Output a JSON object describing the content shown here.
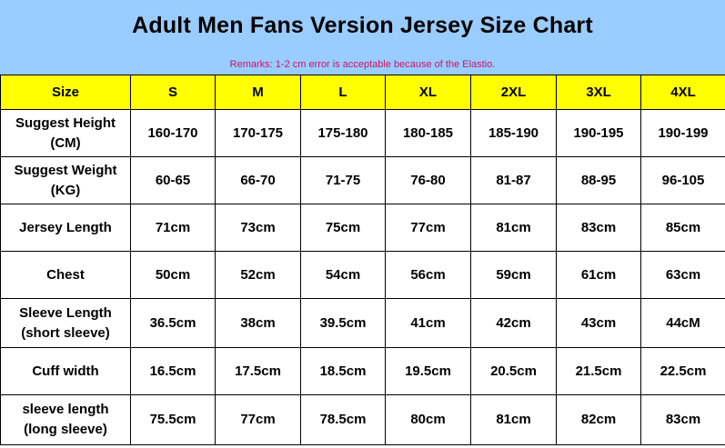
{
  "title": "Adult Men Fans Version Jersey Size Chart",
  "remark": "Remarks: 1-2 cm error is acceptable because of the Elastio.",
  "colors": {
    "header_background": "#99ccff",
    "size_row_background": "#ffff00",
    "remark_text": "#d01060"
  },
  "table": {
    "header": [
      "Size",
      "S",
      "M",
      "L",
      "XL",
      "2XL",
      "3XL",
      "4XL"
    ],
    "rows": [
      {
        "label_line1": "Suggest Height",
        "label_line2": "(CM)",
        "values": [
          "160-170",
          "170-175",
          "175-180",
          "180-185",
          "185-190",
          "190-195",
          "190-199"
        ]
      },
      {
        "label_line1": "Suggest Weight",
        "label_line2": "(KG)",
        "values": [
          "60-65",
          "66-70",
          "71-75",
          "76-80",
          "81-87",
          "88-95",
          "96-105"
        ]
      },
      {
        "label_line1": "Jersey Length",
        "label_line2": "",
        "values": [
          "71cm",
          "73cm",
          "75cm",
          "77cm",
          "81cm",
          "83cm",
          "85cm"
        ]
      },
      {
        "label_line1": "Chest",
        "label_line2": "",
        "values": [
          "50cm",
          "52cm",
          "54cm",
          "56cm",
          "59cm",
          "61cm",
          "63cm"
        ]
      },
      {
        "label_line1": "Sleeve Length",
        "label_line2": "(short sleeve)",
        "values": [
          "36.5cm",
          "38cm",
          "39.5cm",
          "41cm",
          "42cm",
          "43cm",
          "44cM"
        ]
      },
      {
        "label_line1": "Cuff width",
        "label_line2": "",
        "values": [
          "16.5cm",
          "17.5cm",
          "18.5cm",
          "19.5cm",
          "20.5cm",
          "21.5cm",
          "22.5cm"
        ]
      },
      {
        "label_line1": "sleeve length",
        "label_line2": "(long sleeve)",
        "values": [
          "75.5cm",
          "77cm",
          "78.5cm",
          "80cm",
          "81cm",
          "82cm",
          "83cm"
        ]
      }
    ]
  }
}
